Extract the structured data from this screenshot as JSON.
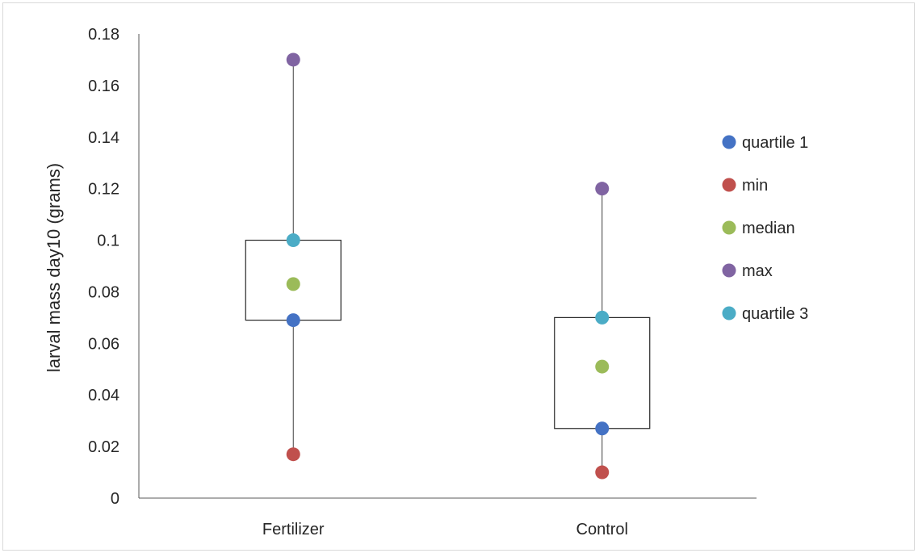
{
  "chart_data": {
    "type": "box",
    "title": "",
    "xlabel": "",
    "ylabel": "larval mass day10 (grams)",
    "ylim": [
      0,
      0.18
    ],
    "yticks": [
      0,
      0.02,
      0.04,
      0.06,
      0.08,
      0.1,
      0.12,
      0.14,
      0.16,
      0.18
    ],
    "ytick_labels": [
      "0",
      "0.02",
      "0.04",
      "0.06",
      "0.08",
      "0.1",
      "0.12",
      "0.14",
      "0.16",
      "0.18"
    ],
    "categories": [
      "Fertilizer",
      "Control"
    ],
    "series": [
      {
        "name": "quartile 1",
        "color": "#4472c4",
        "values": [
          0.069,
          0.027
        ]
      },
      {
        "name": "min",
        "color": "#c0504d",
        "values": [
          0.017,
          0.01
        ]
      },
      {
        "name": "median",
        "color": "#9bbb59",
        "values": [
          0.083,
          0.051
        ]
      },
      {
        "name": "max",
        "color": "#8064a2",
        "values": [
          0.17,
          0.12
        ]
      },
      {
        "name": "quartile 3",
        "color": "#4bacc6",
        "values": [
          0.1,
          0.07
        ]
      }
    ],
    "grid": false,
    "legend_position": "right"
  }
}
